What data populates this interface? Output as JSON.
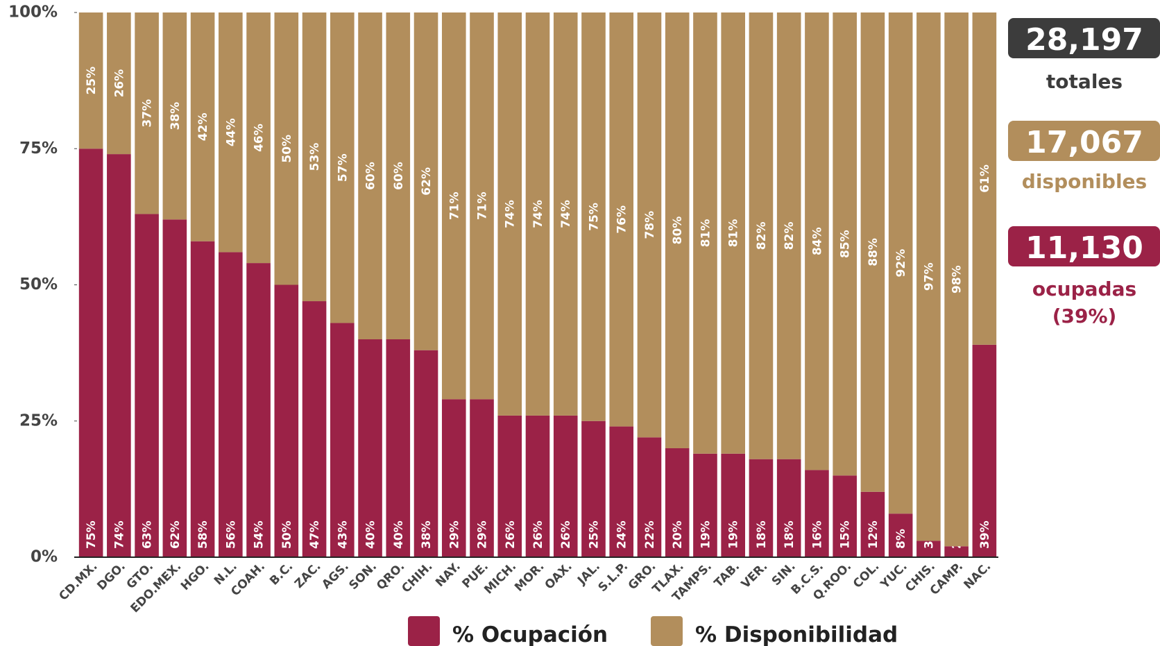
{
  "chart_data": {
    "type": "stacked_bar",
    "categories": [
      "CD.MX.",
      "DGO.",
      "GTO.",
      "EDO.MEX.",
      "HGO.",
      "N.L.",
      "COAH.",
      "B.C.",
      "ZAC.",
      "AGS.",
      "SON.",
      "QRO.",
      "CHIH.",
      "NAY.",
      "PUE.",
      "MICH.",
      "MOR.",
      "OAX.",
      "JAL.",
      "S.L.P.",
      "GRO.",
      "TLAX.",
      "TAMPS.",
      "TAB.",
      "VER.",
      "SIN.",
      "B.C.S.",
      "Q.ROO.",
      "COL.",
      "YUC.",
      "CHIS.",
      "CAMP.",
      "NAC."
    ],
    "series": [
      {
        "name": "% Ocupación",
        "color": "#9b2247",
        "values": [
          75,
          74,
          63,
          62,
          58,
          56,
          54,
          50,
          47,
          43,
          40,
          40,
          38,
          29,
          29,
          26,
          26,
          26,
          25,
          24,
          22,
          20,
          19,
          19,
          18,
          18,
          16,
          15,
          12,
          8,
          3,
          2,
          39
        ],
        "value_labels": [
          "75%",
          "74%",
          "63%",
          "62%",
          "58%",
          "56%",
          "54%",
          "50%",
          "47%",
          "43%",
          "40%",
          "40%",
          "38%",
          "29%",
          "29%",
          "26%",
          "26%",
          "26%",
          "25%",
          "24%",
          "22%",
          "20%",
          "19%",
          "19%",
          "18%",
          "18%",
          "16%",
          "15%",
          "12%",
          "8%",
          "3%",
          "2%",
          "39%"
        ]
      },
      {
        "name": "% Disponibilidad",
        "color": "#b28e5c",
        "values": [
          25,
          26,
          37,
          38,
          42,
          44,
          46,
          50,
          53,
          57,
          60,
          60,
          62,
          71,
          71,
          74,
          74,
          74,
          75,
          76,
          78,
          80,
          81,
          81,
          82,
          82,
          84,
          85,
          88,
          92,
          97,
          98,
          61
        ],
        "value_labels": [
          "25%",
          "26%",
          "37%",
          "38%",
          "42%",
          "44%",
          "46%",
          "50%",
          "53%",
          "57%",
          "60%",
          "60%",
          "62%",
          "71%",
          "71%",
          "74%",
          "74%",
          "74%",
          "75%",
          "76%",
          "78%",
          "80%",
          "81%",
          "81%",
          "82%",
          "82%",
          "84%",
          "85%",
          "88%",
          "92%",
          "97%",
          "98%",
          "61%"
        ]
      }
    ],
    "ylim": [
      0,
      100
    ],
    "yticks": [
      {
        "value": 0,
        "label": "0%"
      },
      {
        "value": 25,
        "label": "25%"
      },
      {
        "value": 50,
        "label": "50%"
      },
      {
        "value": 75,
        "label": "75%"
      },
      {
        "value": 100,
        "label": "100%"
      }
    ],
    "legend": "bottom",
    "summary": [
      {
        "label": "28,197",
        "caption": [
          "totales"
        ],
        "color": "#3c3c3c",
        "caption_color": "#3c3c3c"
      },
      {
        "label": "17,067",
        "caption": [
          "disponibles"
        ],
        "color": "#b28e5c",
        "caption_color": "#b28e5c"
      },
      {
        "label": "11,130",
        "caption": [
          "ocupadas",
          "(39%)"
        ],
        "color": "#9b2247",
        "caption_color": "#9b2247"
      }
    ]
  }
}
